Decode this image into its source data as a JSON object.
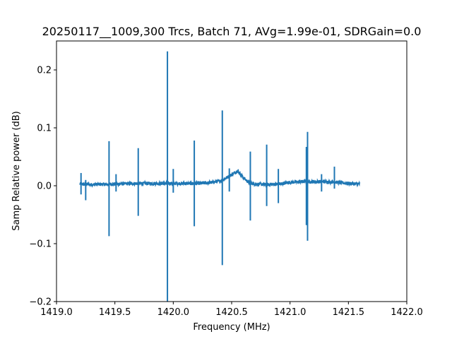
{
  "chart_data": {
    "type": "line",
    "title": "20250117__1009,300 Trcs, Batch 71, AVg=1.99e-01, SDRGain=0.0",
    "xlabel": "Frequency (MHz)",
    "ylabel": "Samp Relative power (dB)",
    "xlim": [
      1419.0,
      1422.0
    ],
    "ylim": [
      -0.2,
      0.25
    ],
    "xticks": [
      1419.0,
      1419.5,
      1420.0,
      1420.5,
      1421.0,
      1421.5,
      1422.0
    ],
    "xtick_labels": [
      "1419.0",
      "1419.5",
      "1420.0",
      "1420.5",
      "1421.0",
      "1421.5",
      "1422.0"
    ],
    "yticks": [
      -0.2,
      -0.1,
      0.0,
      0.1,
      0.2
    ],
    "ytick_labels": [
      "−0.2",
      "−0.1",
      "0.0",
      "0.1",
      "0.2"
    ],
    "grid": false,
    "line_color": "#1f77b4",
    "series": [
      {
        "x_start": 1419.2,
        "x_end": 1421.6,
        "baseline": [
          [
            1419.2,
            0.003
          ],
          [
            1419.3,
            0.002
          ],
          [
            1419.5,
            0.003
          ],
          [
            1419.7,
            0.004
          ],
          [
            1419.9,
            0.004
          ],
          [
            1420.0,
            0.004
          ],
          [
            1420.1,
            0.004
          ],
          [
            1420.2,
            0.004
          ],
          [
            1420.3,
            0.005
          ],
          [
            1420.4,
            0.008
          ],
          [
            1420.45,
            0.013
          ],
          [
            1420.5,
            0.019
          ],
          [
            1420.55,
            0.026
          ],
          [
            1420.6,
            0.014
          ],
          [
            1420.65,
            0.005
          ],
          [
            1420.7,
            0.003
          ],
          [
            1420.8,
            0.002
          ],
          [
            1420.9,
            0.003
          ],
          [
            1421.0,
            0.006
          ],
          [
            1421.1,
            0.007
          ],
          [
            1421.2,
            0.007
          ],
          [
            1421.3,
            0.007
          ],
          [
            1421.4,
            0.006
          ],
          [
            1421.5,
            0.004
          ],
          [
            1421.6,
            0.003
          ]
        ],
        "spikes": [
          {
            "x": 1419.21,
            "high": 0.022,
            "low": -0.015
          },
          {
            "x": 1419.25,
            "high": 0.01,
            "low": -0.025
          },
          {
            "x": 1419.45,
            "high": 0.077,
            "low": -0.087
          },
          {
            "x": 1419.51,
            "high": 0.02,
            "low": -0.01
          },
          {
            "x": 1419.7,
            "high": 0.065,
            "low": -0.052
          },
          {
            "x": 1419.95,
            "high": 0.232,
            "low": -0.2
          },
          {
            "x": 1420.0,
            "high": 0.029,
            "low": -0.012
          },
          {
            "x": 1420.18,
            "high": 0.078,
            "low": -0.07
          },
          {
            "x": 1420.42,
            "high": 0.13,
            "low": -0.137
          },
          {
            "x": 1420.48,
            "high": 0.03,
            "low": -0.01
          },
          {
            "x": 1420.66,
            "high": 0.059,
            "low": -0.06
          },
          {
            "x": 1420.8,
            "high": 0.071,
            "low": -0.035
          },
          {
            "x": 1420.9,
            "high": 0.029,
            "low": -0.03
          },
          {
            "x": 1421.14,
            "high": 0.067,
            "low": -0.068
          },
          {
            "x": 1421.15,
            "high": 0.093,
            "low": -0.095
          },
          {
            "x": 1421.27,
            "high": 0.02,
            "low": -0.01
          },
          {
            "x": 1421.38,
            "high": 0.033,
            "low": -0.005
          }
        ]
      }
    ]
  }
}
